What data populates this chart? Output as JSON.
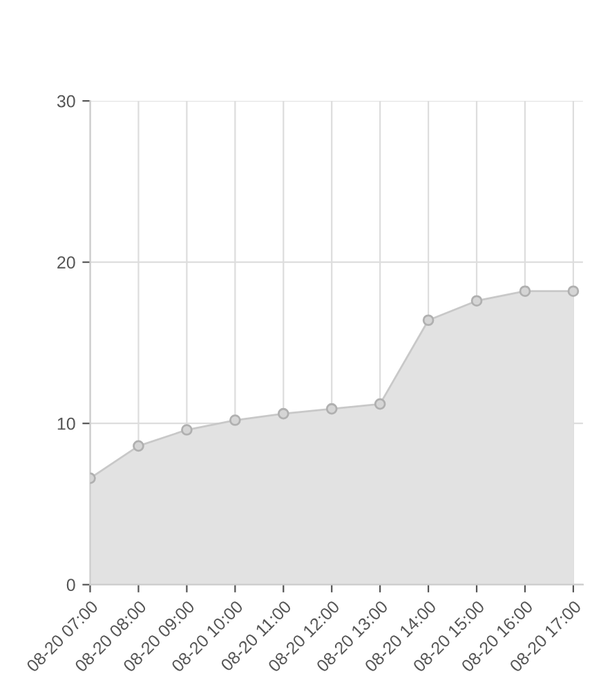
{
  "chart_data": {
    "type": "area",
    "categories": [
      "08-20 07:00",
      "08-20 08:00",
      "08-20 09:00",
      "08-20 10:00",
      "08-20 11:00",
      "08-20 12:00",
      "08-20 13:00",
      "08-20 14:00",
      "08-20 15:00",
      "08-20 16:00",
      "08-20 17:00"
    ],
    "series": [
      {
        "color": "#c8c8c8",
        "values": [
          6.6,
          8.6,
          9.6,
          10.2,
          10.6,
          10.9,
          11.2,
          16.4,
          17.6,
          18.2,
          18.2
        ]
      }
    ],
    "ylim": [
      0,
      30
    ],
    "yticks": [
      0,
      10,
      20,
      30
    ],
    "grid": true,
    "marker": "circle",
    "line_style": "solid"
  }
}
